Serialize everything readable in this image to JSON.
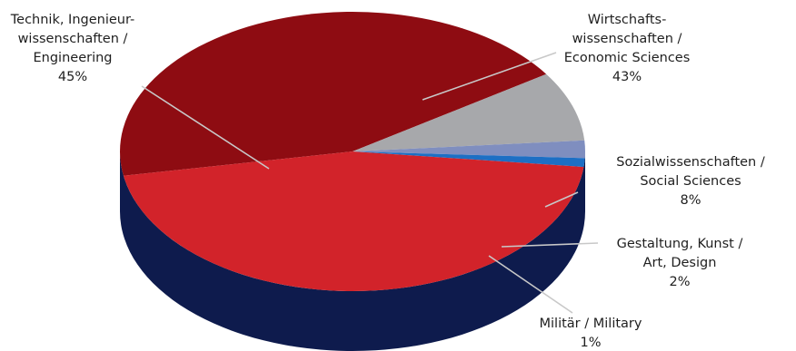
{
  "chart_data": {
    "type": "pie",
    "three_d": true,
    "title": "",
    "start_angle_deg": 190,
    "direction": "clockwise",
    "legend": "none",
    "slices": [
      {
        "name_lines": [
          "Wirtschafts-",
          "wissenschaften /",
          "Economic Sciences"
        ],
        "value": 43,
        "label": "43%",
        "color": "#8E0C12"
      },
      {
        "name_lines": [
          "Sozialwissenschaften /",
          "Social Sciences"
        ],
        "value": 8,
        "label": "8%",
        "color": "#A7A8AB"
      },
      {
        "name_lines": [
          "Gestaltung, Kunst /",
          "Art, Design"
        ],
        "value": 2,
        "label": "2%",
        "color": "#7F8EBF"
      },
      {
        "name_lines": [
          "Militär / Military"
        ],
        "value": 1,
        "label": "1%",
        "color": "#1D6FC4"
      },
      {
        "name_lines": [
          "Technik, Ingenieur-",
          "wissenschaften /",
          "Engineering"
        ],
        "value": 45,
        "label": "45%",
        "color": "#D2232A"
      }
    ],
    "side_color": "#0E1B4D"
  }
}
